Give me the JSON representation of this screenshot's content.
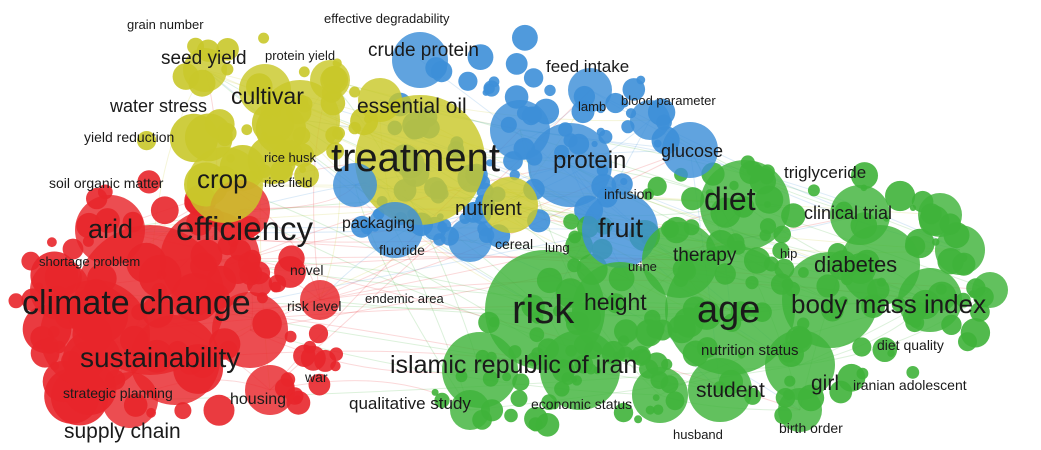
{
  "clusters": [
    {
      "name": "red",
      "color": "#e8262b"
    },
    {
      "name": "yellow",
      "color": "#c9c82a"
    },
    {
      "name": "blue",
      "color": "#3d8fd8"
    },
    {
      "name": "green",
      "color": "#3fb33a"
    }
  ],
  "terms": [
    {
      "label": "grain number",
      "cluster": "yellow"
    },
    {
      "label": "effective degradability",
      "cluster": "blue"
    },
    {
      "label": "seed yield",
      "cluster": "yellow"
    },
    {
      "label": "protein yield",
      "cluster": "yellow"
    },
    {
      "label": "crude protein",
      "cluster": "blue"
    },
    {
      "label": "feed intake",
      "cluster": "blue"
    },
    {
      "label": "water stress",
      "cluster": "yellow"
    },
    {
      "label": "cultivar",
      "cluster": "yellow"
    },
    {
      "label": "essential oil",
      "cluster": "blue"
    },
    {
      "label": "lamb",
      "cluster": "blue"
    },
    {
      "label": "blood parameter",
      "cluster": "blue"
    },
    {
      "label": "yield reduction",
      "cluster": "yellow"
    },
    {
      "label": "treatment",
      "cluster": "yellow"
    },
    {
      "label": "protein",
      "cluster": "blue"
    },
    {
      "label": "glucose",
      "cluster": "blue"
    },
    {
      "label": "rice husk",
      "cluster": "yellow"
    },
    {
      "label": "rice field",
      "cluster": "yellow"
    },
    {
      "label": "soil organic matter",
      "cluster": "red"
    },
    {
      "label": "crop",
      "cluster": "yellow"
    },
    {
      "label": "triglyceride",
      "cluster": "green"
    },
    {
      "label": "infusion",
      "cluster": "blue"
    },
    {
      "label": "diet",
      "cluster": "green"
    },
    {
      "label": "nutrient",
      "cluster": "yellow"
    },
    {
      "label": "clinical trial",
      "cluster": "green"
    },
    {
      "label": "arid",
      "cluster": "red"
    },
    {
      "label": "efficiency",
      "cluster": "red"
    },
    {
      "label": "packaging",
      "cluster": "blue"
    },
    {
      "label": "fruit",
      "cluster": "blue"
    },
    {
      "label": "fluoride",
      "cluster": "blue"
    },
    {
      "label": "cereal",
      "cluster": "blue"
    },
    {
      "label": "lung",
      "cluster": "green"
    },
    {
      "label": "therapy",
      "cluster": "green"
    },
    {
      "label": "hip",
      "cluster": "green"
    },
    {
      "label": "diabetes",
      "cluster": "green"
    },
    {
      "label": "shortage problem",
      "cluster": "red"
    },
    {
      "label": "novel",
      "cluster": "red"
    },
    {
      "label": "urine",
      "cluster": "green"
    },
    {
      "label": "climate change",
      "cluster": "red"
    },
    {
      "label": "risk level",
      "cluster": "red"
    },
    {
      "label": "endemic area",
      "cluster": "red"
    },
    {
      "label": "risk",
      "cluster": "green"
    },
    {
      "label": "height",
      "cluster": "green"
    },
    {
      "label": "age",
      "cluster": "green"
    },
    {
      "label": "body mass index",
      "cluster": "green"
    },
    {
      "label": "diet quality",
      "cluster": "green"
    },
    {
      "label": "sustainability",
      "cluster": "red"
    },
    {
      "label": "nutrition status",
      "cluster": "green"
    },
    {
      "label": "islamic republic of iran",
      "cluster": "green"
    },
    {
      "label": "war",
      "cluster": "red"
    },
    {
      "label": "girl",
      "cluster": "green"
    },
    {
      "label": "iranian adolescent",
      "cluster": "green"
    },
    {
      "label": "strategic planning",
      "cluster": "red"
    },
    {
      "label": "housing",
      "cluster": "red"
    },
    {
      "label": "qualitative study",
      "cluster": "green"
    },
    {
      "label": "economic status",
      "cluster": "green"
    },
    {
      "label": "student",
      "cluster": "green"
    },
    {
      "label": "supply chain",
      "cluster": "red"
    },
    {
      "label": "husband",
      "cluster": "green"
    },
    {
      "label": "birth order",
      "cluster": "green"
    }
  ]
}
